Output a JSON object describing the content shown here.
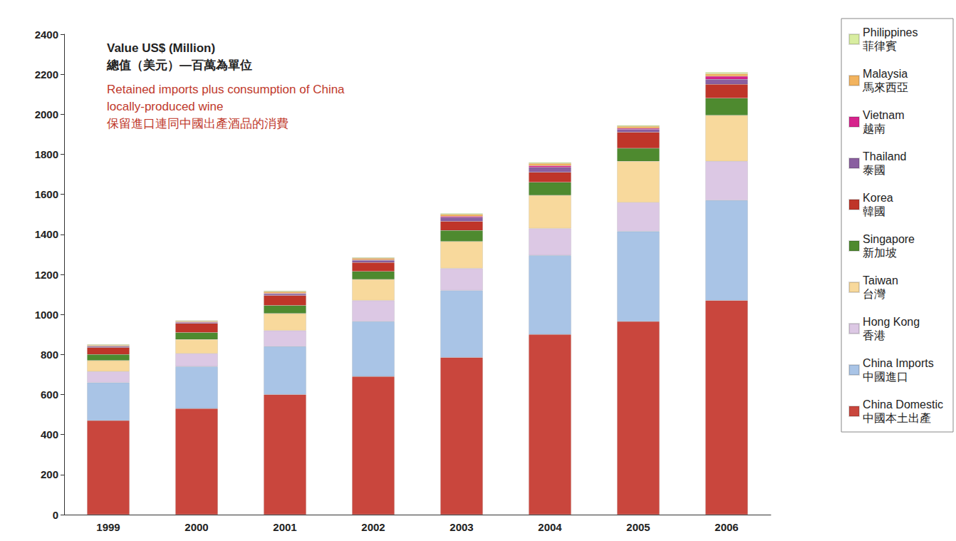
{
  "chart_data": {
    "type": "bar",
    "title": "Value US$ (Million)\n總值（美元）—百萬為單位",
    "subtitle": "Retained imports plus consumption of China\nlocally-produced wine\n保留進口連同中國出產酒品的消費",
    "categories": [
      "1999",
      "2000",
      "2001",
      "2002",
      "2003",
      "2004",
      "2005",
      "2006"
    ],
    "series": [
      {
        "name": "China Domestic\n中國本土出產",
        "color": "#c9463d",
        "values": [
          470,
          530,
          600,
          690,
          785,
          900,
          965,
          1070
        ]
      },
      {
        "name": "China Imports\n中國進口",
        "color": "#a9c4e6",
        "values": [
          190,
          210,
          240,
          275,
          335,
          395,
          450,
          500
        ]
      },
      {
        "name": "Hong Kong\n香港",
        "color": "#dcc8e4",
        "values": [
          55,
          65,
          80,
          105,
          110,
          135,
          145,
          195
        ]
      },
      {
        "name": "Taiwan\n台灣",
        "color": "#f8d99c",
        "values": [
          55,
          70,
          85,
          105,
          135,
          165,
          205,
          230
        ]
      },
      {
        "name": "Singapore\n新加坡",
        "color": "#4e8a2f",
        "values": [
          30,
          35,
          40,
          40,
          55,
          65,
          65,
          85
        ]
      },
      {
        "name": "Korea\n韓國",
        "color": "#bf3529",
        "values": [
          35,
          45,
          50,
          45,
          45,
          50,
          80,
          70
        ]
      },
      {
        "name": "Thailand\n泰國",
        "color": "#8a5fa0",
        "values": [
          5,
          5,
          8,
          10,
          20,
          25,
          15,
          25
        ]
      },
      {
        "name": "Vietnam\n越南",
        "color": "#d6238c",
        "values": [
          2,
          2,
          3,
          3,
          5,
          8,
          5,
          15
        ]
      },
      {
        "name": "Malaysia\n馬來西亞",
        "color": "#f2b35e",
        "values": [
          5,
          5,
          8,
          8,
          10,
          12,
          10,
          12
        ]
      },
      {
        "name": "Philippines\n菲律賓",
        "color": "#d8eda0",
        "values": [
          3,
          3,
          4,
          4,
          5,
          5,
          5,
          8
        ]
      }
    ],
    "ylim": [
      0,
      2400
    ],
    "yticks": [
      0,
      200,
      400,
      600,
      800,
      1000,
      1200,
      1400,
      1600,
      1800,
      2000,
      2200,
      2400
    ],
    "stacked": true,
    "grid": false,
    "legend": "upper right"
  }
}
